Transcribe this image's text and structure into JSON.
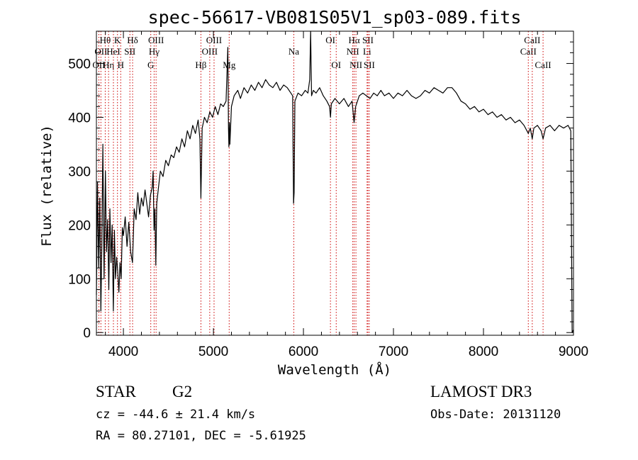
{
  "chart_data": {
    "type": "line",
    "title": "spec-56617-VB081S05V1_sp03-089.fits",
    "xlabel": "Wavelength (Å)",
    "ylabel": "Flux (relative)",
    "xlim": [
      3700,
      9000
    ],
    "ylim": [
      -5,
      560
    ],
    "x_ticks": [
      4000,
      5000,
      6000,
      7000,
      8000,
      9000
    ],
    "y_ticks": [
      0,
      100,
      200,
      300,
      400,
      500
    ],
    "x_minor_step": 200,
    "y_minor_step": 20,
    "grid": false,
    "line_color": "#000000",
    "marker_color": "#cc0000",
    "series": [
      {
        "points": [
          [
            3700,
            70
          ],
          [
            3712,
            280
          ],
          [
            3725,
            120
          ],
          [
            3738,
            250
          ],
          [
            3750,
            40
          ],
          [
            3760,
            160
          ],
          [
            3772,
            350
          ],
          [
            3785,
            100
          ],
          [
            3800,
            300
          ],
          [
            3812,
            150
          ],
          [
            3825,
            210
          ],
          [
            3838,
            80
          ],
          [
            3850,
            230
          ],
          [
            3862,
            130
          ],
          [
            3875,
            200
          ],
          [
            3888,
            40
          ],
          [
            3900,
            190
          ],
          [
            3912,
            100
          ],
          [
            3925,
            140
          ],
          [
            3938,
            110
          ],
          [
            3950,
            75
          ],
          [
            3962,
            130
          ],
          [
            3975,
            100
          ],
          [
            3988,
            195
          ],
          [
            4000,
            180
          ],
          [
            4020,
            215
          ],
          [
            4040,
            160
          ],
          [
            4060,
            205
          ],
          [
            4080,
            150
          ],
          [
            4101,
            130
          ],
          [
            4120,
            230
          ],
          [
            4140,
            210
          ],
          [
            4160,
            260
          ],
          [
            4180,
            220
          ],
          [
            4200,
            250
          ],
          [
            4220,
            235
          ],
          [
            4240,
            265
          ],
          [
            4260,
            240
          ],
          [
            4280,
            215
          ],
          [
            4300,
            255
          ],
          [
            4320,
            270
          ],
          [
            4330,
            300
          ],
          [
            4340,
            190
          ],
          [
            4350,
            230
          ],
          [
            4360,
            125
          ],
          [
            4370,
            240
          ],
          [
            4390,
            270
          ],
          [
            4410,
            300
          ],
          [
            4440,
            290
          ],
          [
            4470,
            320
          ],
          [
            4500,
            310
          ],
          [
            4530,
            330
          ],
          [
            4560,
            325
          ],
          [
            4590,
            345
          ],
          [
            4620,
            335
          ],
          [
            4650,
            360
          ],
          [
            4680,
            345
          ],
          [
            4710,
            375
          ],
          [
            4740,
            360
          ],
          [
            4770,
            385
          ],
          [
            4800,
            370
          ],
          [
            4830,
            395
          ],
          [
            4850,
            360
          ],
          [
            4861,
            250
          ],
          [
            4875,
            380
          ],
          [
            4900,
            400
          ],
          [
            4930,
            390
          ],
          [
            4960,
            410
          ],
          [
            4990,
            400
          ],
          [
            5020,
            420
          ],
          [
            5050,
            405
          ],
          [
            5080,
            425
          ],
          [
            5110,
            420
          ],
          [
            5140,
            430
          ],
          [
            5160,
            530
          ],
          [
            5167,
            380
          ],
          [
            5172,
            345
          ],
          [
            5178,
            390
          ],
          [
            5183,
            350
          ],
          [
            5200,
            420
          ],
          [
            5230,
            440
          ],
          [
            5270,
            450
          ],
          [
            5300,
            435
          ],
          [
            5340,
            455
          ],
          [
            5380,
            445
          ],
          [
            5420,
            460
          ],
          [
            5460,
            450
          ],
          [
            5500,
            465
          ],
          [
            5540,
            455
          ],
          [
            5580,
            470
          ],
          [
            5620,
            460
          ],
          [
            5660,
            455
          ],
          [
            5700,
            465
          ],
          [
            5740,
            450
          ],
          [
            5780,
            460
          ],
          [
            5820,
            455
          ],
          [
            5860,
            445
          ],
          [
            5880,
            440
          ],
          [
            5890,
            240
          ],
          [
            5896,
            260
          ],
          [
            5905,
            430
          ],
          [
            5940,
            445
          ],
          [
            5980,
            440
          ],
          [
            6020,
            450
          ],
          [
            6050,
            445
          ],
          [
            6070,
            470
          ],
          [
            6080,
            560
          ],
          [
            6090,
            440
          ],
          [
            6110,
            450
          ],
          [
            6140,
            445
          ],
          [
            6180,
            455
          ],
          [
            6220,
            440
          ],
          [
            6260,
            430
          ],
          [
            6290,
            420
          ],
          [
            6300,
            400
          ],
          [
            6310,
            425
          ],
          [
            6350,
            435
          ],
          [
            6400,
            425
          ],
          [
            6450,
            435
          ],
          [
            6500,
            420
          ],
          [
            6540,
            430
          ],
          [
            6563,
            390
          ],
          [
            6580,
            420
          ],
          [
            6620,
            440
          ],
          [
            6660,
            445
          ],
          [
            6700,
            440
          ],
          [
            6740,
            435
          ],
          [
            6780,
            445
          ],
          [
            6820,
            440
          ],
          [
            6860,
            450
          ],
          [
            6900,
            440
          ],
          [
            6950,
            445
          ],
          [
            7000,
            435
          ],
          [
            7050,
            445
          ],
          [
            7100,
            440
          ],
          [
            7150,
            450
          ],
          [
            7200,
            440
          ],
          [
            7250,
            435
          ],
          [
            7300,
            440
          ],
          [
            7350,
            450
          ],
          [
            7400,
            445
          ],
          [
            7450,
            455
          ],
          [
            7500,
            450
          ],
          [
            7550,
            445
          ],
          [
            7600,
            455
          ],
          [
            7650,
            455
          ],
          [
            7700,
            445
          ],
          [
            7750,
            430
          ],
          [
            7800,
            425
          ],
          [
            7850,
            415
          ],
          [
            7900,
            420
          ],
          [
            7950,
            410
          ],
          [
            8000,
            415
          ],
          [
            8050,
            405
          ],
          [
            8100,
            410
          ],
          [
            8150,
            400
          ],
          [
            8200,
            405
          ],
          [
            8250,
            395
          ],
          [
            8300,
            400
          ],
          [
            8350,
            390
          ],
          [
            8400,
            395
          ],
          [
            8450,
            385
          ],
          [
            8498,
            370
          ],
          [
            8520,
            380
          ],
          [
            8542,
            360
          ],
          [
            8560,
            380
          ],
          [
            8600,
            385
          ],
          [
            8640,
            375
          ],
          [
            8662,
            360
          ],
          [
            8690,
            380
          ],
          [
            8740,
            385
          ],
          [
            8790,
            375
          ],
          [
            8840,
            385
          ],
          [
            8890,
            380
          ],
          [
            8940,
            385
          ],
          [
            8970,
            375
          ],
          [
            8985,
            0
          ],
          [
            9000,
            5
          ]
        ]
      }
    ],
    "line_markers": [
      {
        "wavelength": 3750,
        "labels": [
          "OII"
        ],
        "rows": [
          2
        ]
      },
      {
        "wavelength": 3727,
        "labels": [
          "OII"
        ],
        "rows": [
          3
        ]
      },
      {
        "wavelength": 3798,
        "labels": [
          "Hθ"
        ],
        "rows": [
          1
        ]
      },
      {
        "wavelength": 3835,
        "labels": [
          "Hη"
        ],
        "rows": [
          3
        ]
      },
      {
        "wavelength": 3889,
        "labels": [
          "HeI"
        ],
        "rows": [
          2
        ]
      },
      {
        "wavelength": 3934,
        "labels": [
          "K"
        ],
        "rows": [
          1
        ]
      },
      {
        "wavelength": 3970,
        "labels": [
          "H"
        ],
        "rows": [
          3
        ]
      },
      {
        "wavelength": 4072,
        "labels": [
          "SII"
        ],
        "rows": [
          2
        ]
      },
      {
        "wavelength": 4102,
        "labels": [
          "Hδ"
        ],
        "rows": [
          1
        ]
      },
      {
        "wavelength": 4304,
        "labels": [
          "G"
        ],
        "rows": [
          3
        ]
      },
      {
        "wavelength": 4341,
        "labels": [
          "Hγ"
        ],
        "rows": [
          2
        ]
      },
      {
        "wavelength": 4363,
        "labels": [
          "OIII"
        ],
        "rows": [
          1
        ]
      },
      {
        "wavelength": 4861,
        "labels": [
          "Hβ"
        ],
        "rows": [
          3
        ]
      },
      {
        "wavelength": 4959,
        "labels": [
          "OIII"
        ],
        "rows": [
          2
        ]
      },
      {
        "wavelength": 5007,
        "labels": [
          "OIII"
        ],
        "rows": [
          1
        ]
      },
      {
        "wavelength": 5175,
        "labels": [
          "Mg"
        ],
        "rows": [
          3
        ]
      },
      {
        "wavelength": 5893,
        "labels": [
          "Na"
        ],
        "rows": [
          2
        ]
      },
      {
        "wavelength": 6300,
        "labels": [
          "OI"
        ],
        "rows": [
          1
        ]
      },
      {
        "wavelength": 6364,
        "labels": [
          "OI"
        ],
        "rows": [
          3
        ]
      },
      {
        "wavelength": 6548,
        "labels": [
          "NII"
        ],
        "rows": [
          2
        ]
      },
      {
        "wavelength": 6563,
        "labels": [
          "Hα"
        ],
        "rows": [
          1
        ]
      },
      {
        "wavelength": 6583,
        "labels": [
          "NII"
        ],
        "rows": [
          3
        ]
      },
      {
        "wavelength": 6707,
        "labels": [
          "Li"
        ],
        "rows": [
          2
        ]
      },
      {
        "wavelength": 6716,
        "labels": [
          "SII"
        ],
        "rows": [
          1
        ]
      },
      {
        "wavelength": 6731,
        "labels": [
          "SII"
        ],
        "rows": [
          3
        ]
      },
      {
        "wavelength": 8498,
        "labels": [
          "CaII"
        ],
        "rows": [
          2
        ]
      },
      {
        "wavelength": 8542,
        "labels": [
          "CaII"
        ],
        "rows": [
          1
        ]
      },
      {
        "wavelength": 8662,
        "labels": [
          "CaII"
        ],
        "rows": [
          3
        ]
      }
    ]
  },
  "info": {
    "object_class": "STAR",
    "subclass": "G2",
    "survey": "LAMOST DR3",
    "redshift_line": "cz = -44.6 ± 21.4 km/s",
    "obs_date_line": "Obs-Date: 20131120",
    "coords_line": "RA =  80.27101, DEC =  -5.61925"
  }
}
